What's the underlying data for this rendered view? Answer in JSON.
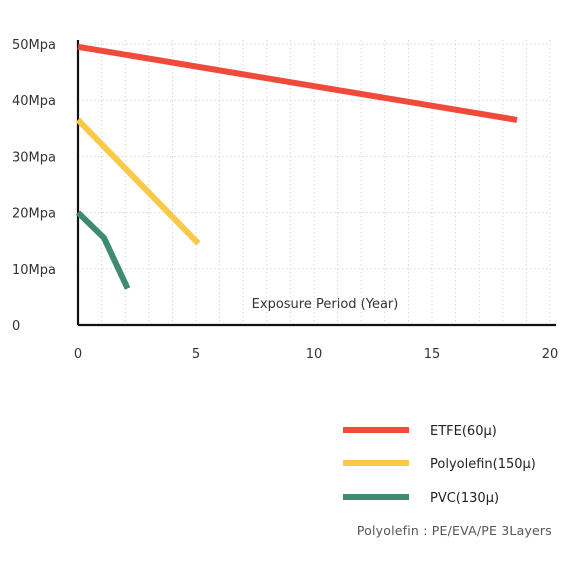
{
  "chart_data": {
    "type": "line",
    "title": "",
    "xlabel": "Exposure Period (Year)",
    "ylabel": "",
    "xlim": [
      0,
      20
    ],
    "ylim": [
      0,
      50
    ],
    "x_ticks": [
      0,
      5,
      10,
      15,
      20
    ],
    "y_ticks": [
      {
        "value": 0,
        "label": "0"
      },
      {
        "value": 10,
        "label": "10Mpa"
      },
      {
        "value": 20,
        "label": "20Mpa"
      },
      {
        "value": 30,
        "label": "30Mpa"
      },
      {
        "value": 40,
        "label": "40Mpa"
      },
      {
        "value": 50,
        "label": "50Mpa"
      }
    ],
    "grid": {
      "horizontal": true,
      "vertical": true,
      "style": "dotted"
    },
    "legend_position": "bottom-right",
    "series": [
      {
        "name": "ETFE(60μ)",
        "color": "#f04a3a",
        "points": [
          [
            0,
            49.5
          ],
          [
            18.6,
            36.5
          ]
        ]
      },
      {
        "name": "Polyolefin(150μ)",
        "color": "#fbc94a",
        "points": [
          [
            0,
            36.5
          ],
          [
            5.1,
            14.5
          ]
        ]
      },
      {
        "name": "PVC(130μ)",
        "color": "#3f8a72",
        "points": [
          [
            0,
            20
          ],
          [
            1.1,
            15.5
          ],
          [
            2.1,
            6.5
          ]
        ]
      }
    ],
    "note": "Polyolefin : PE/EVA/PE 3Layers"
  }
}
